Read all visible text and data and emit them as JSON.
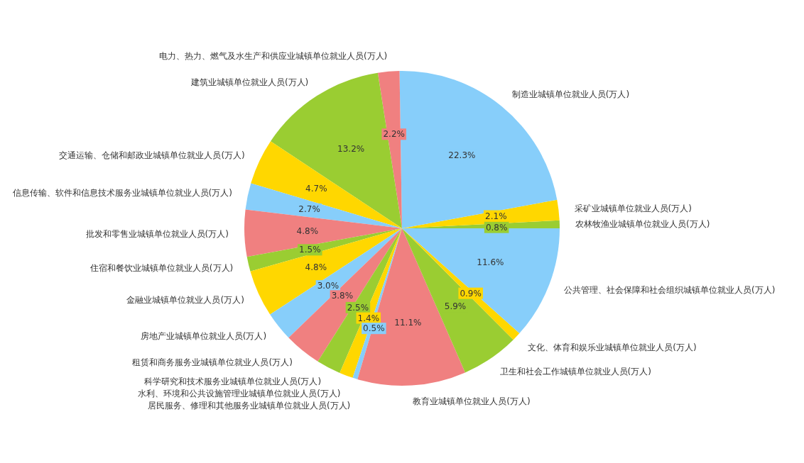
{
  "chart_data": {
    "type": "pie",
    "categories": [
      "农林牧渔业城镇单位就业人员(万人)",
      "采矿业城镇单位就业人员(万人)",
      "制造业城镇单位就业人员(万人)",
      "电力、热力、燃气及水生产和供应业城镇单位就业人员(万人)",
      "建筑业城镇单位就业人员(万人)",
      "交通运输、仓储和邮政业城镇单位就业人员(万人)",
      "信息传输、软件和信息技术服务业城镇单位就业人员(万人)",
      "批发和零售业城镇单位就业人员(万人)",
      "住宿和餐饮业城镇单位就业人员(万人)",
      "金融业城镇单位就业人员(万人)",
      "房地产业城镇单位就业人员(万人)",
      "租赁和商务服务业城镇单位就业人员(万人)",
      "科学研究和技术服务业城镇单位就业人员(万人)",
      "水利、环境和公共设施管理业城镇单位就业人员(万人)",
      "居民服务、修理和其他服务业城镇单位就业人员(万人)",
      "教育业城镇单位就业人员(万人)",
      "卫生和社会工作城镇单位就业人员(万人)",
      "文化、体育和娱乐业城镇单位就业人员(万人)",
      "公共管理、社会保障和社会组织城镇单位就业人员(万人)"
    ],
    "values": [
      0.8,
      2.1,
      22.3,
      2.2,
      13.2,
      4.7,
      2.7,
      4.8,
      1.5,
      4.8,
      3.0,
      3.8,
      2.5,
      1.4,
      0.5,
      11.1,
      5.9,
      0.9,
      11.6
    ],
    "value_labels": [
      "0.8%",
      "2.1%",
      "22.3%",
      "2.2%",
      "13.2%",
      "4.7%",
      "2.7%",
      "4.8%",
      "1.5%",
      "4.8%",
      "3.0%",
      "3.8%",
      "2.5%",
      "1.4%",
      "0.5%",
      "11.1%",
      "5.9%",
      "0.9%",
      "11.6%"
    ],
    "colors": [
      "#9acd32",
      "#ffd700",
      "#87cefa",
      "#f08080",
      "#9acd32",
      "#ffd700",
      "#87cefa",
      "#f08080",
      "#9acd32",
      "#ffd700",
      "#87cefa",
      "#f08080",
      "#9acd32",
      "#ffd700",
      "#87cefa",
      "#f08080",
      "#9acd32",
      "#ffd700",
      "#87cefa"
    ]
  }
}
